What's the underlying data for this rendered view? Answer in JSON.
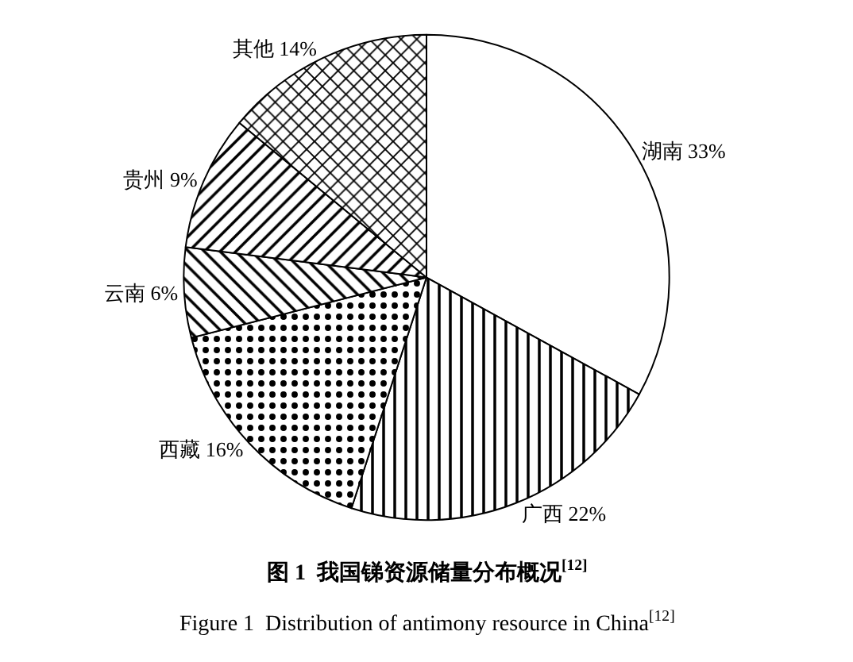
{
  "chart_data": {
    "type": "pie",
    "title": "图 1  我国锑资源储量分布概况$^{[12]}$",
    "subtitle": "Figure 1  Distribution of antimony resource in China$^{[12]}$",
    "categories": [
      "湖南",
      "广西",
      "西藏",
      "云南",
      "贵州",
      "其他"
    ],
    "values": [
      33,
      22,
      16,
      6,
      9,
      14
    ],
    "value_labels": [
      "33%",
      "22%",
      "16%",
      "6%",
      "9%",
      "14%"
    ],
    "colors": [
      "#ffffff",
      "#000000",
      "#000000",
      "#000000",
      "#000000",
      "#000000"
    ],
    "legend": false
  }
}
